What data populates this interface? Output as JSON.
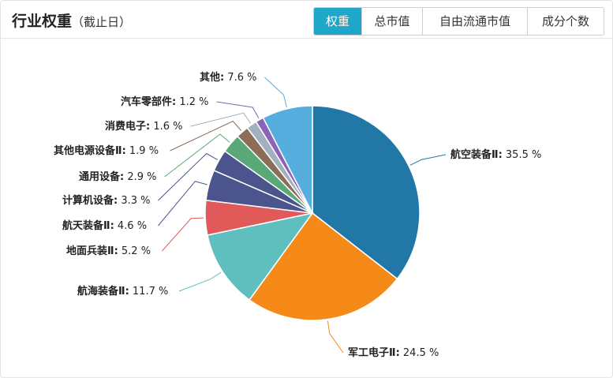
{
  "header": {
    "title": "行业权重",
    "subtitle": "（截止日）"
  },
  "tabs": [
    {
      "label": "权重",
      "active": true
    },
    {
      "label": "总市值",
      "active": false
    },
    {
      "label": "自由流通市值",
      "active": false
    },
    {
      "label": "成分个数",
      "active": false
    }
  ],
  "chart_data": {
    "type": "pie",
    "unit": "%",
    "slices": [
      {
        "name": "航空装备Ⅱ",
        "value": 35.5,
        "color": "#2178a6"
      },
      {
        "name": "军工电子Ⅱ",
        "value": 24.5,
        "color": "#f68a19"
      },
      {
        "name": "航海装备Ⅱ",
        "value": 11.7,
        "color": "#5fbfbf"
      },
      {
        "name": "地面兵装Ⅱ",
        "value": 5.2,
        "color": "#e05a5a"
      },
      {
        "name": "航天装备Ⅱ",
        "value": 4.6,
        "color": "#4b548c"
      },
      {
        "name": "计算机设备",
        "value": 3.3,
        "color": "#4b548c"
      },
      {
        "name": "通用设备",
        "value": 2.9,
        "color": "#e8c552"
      },
      {
        "name": "其他电源设备Ⅱ",
        "value": 1.9,
        "color": "#5aa878"
      },
      {
        "name": "消费电子",
        "value": 1.6,
        "color": "#8c6e58"
      },
      {
        "name": "汽车零部件",
        "value": 1.2,
        "color": "#a3b0bd"
      },
      {
        "name": "其他",
        "value": 7.6,
        "color": "#8b63b8"
      }
    ]
  }
}
